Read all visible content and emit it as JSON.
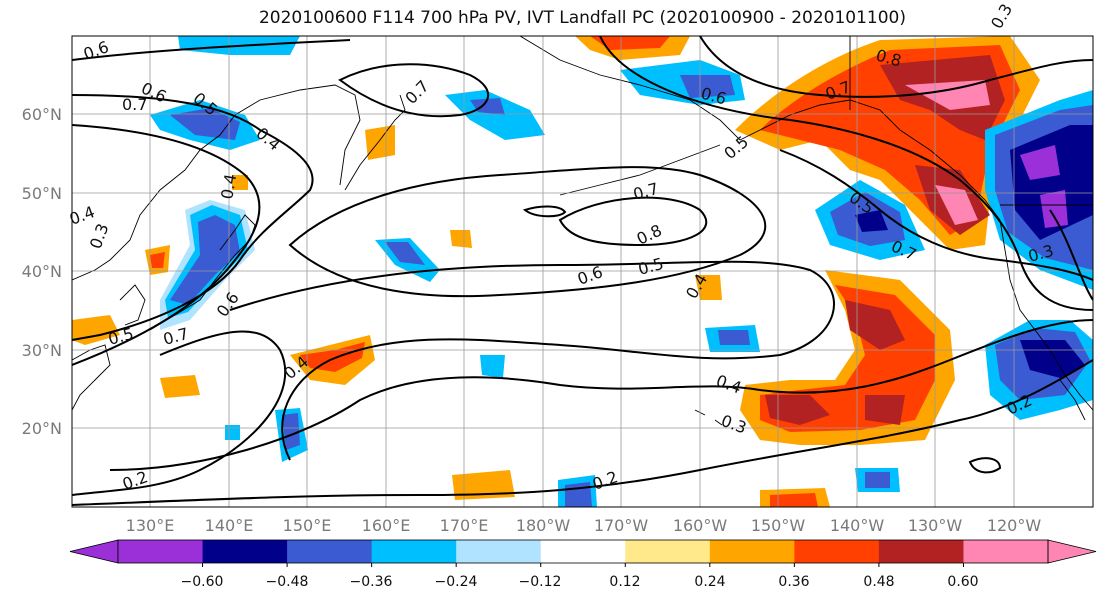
{
  "title": "2020100600 F114 700 hPa PV, IVT Landfall PC (2020100900 - 2020101100)",
  "lat_labels": [
    "60°N",
    "50°N",
    "40°N",
    "30°N",
    "20°N"
  ],
  "lon_labels": [
    "130°E",
    "140°E",
    "150°E",
    "160°E",
    "170°E",
    "180°W",
    "170°W",
    "160°W",
    "150°W",
    "140°W",
    "130°W",
    "120°W"
  ],
  "colorbar": {
    "colors": [
      "#9b30d9",
      "#00008b",
      "#3a5bd1",
      "#00bfff",
      "#afe3ff",
      "#ffffff",
      "#ffe98a",
      "#ffa500",
      "#ff4000",
      "#b22222",
      "#ff85b3"
    ],
    "tick_labels": [
      "−0.60",
      "−0.48",
      "−0.36",
      "−0.24",
      "−0.12",
      "0.12",
      "0.24",
      "0.36",
      "0.48",
      "0.60"
    ]
  },
  "contour_labels": [
    "0.6",
    "0.7",
    "0.6",
    "0.5",
    "0.4",
    "0.4",
    "0.7",
    "0.3",
    "0.4",
    "0.5",
    "0.7",
    "0.6",
    "0.4",
    "0.2",
    "0.8",
    "0.7",
    "0.6",
    "0.5",
    "0.4",
    "0.3",
    "0.2",
    "0.6",
    "0.5",
    "0.8",
    "0.7",
    "0.5",
    "0.7",
    "0.3",
    "0.2",
    "0.4",
    "0.3"
  ]
}
